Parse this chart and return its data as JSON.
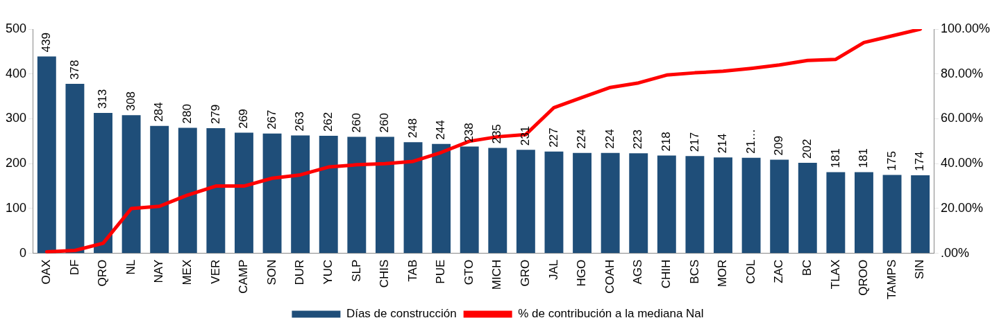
{
  "chart_data": {
    "type": "bar",
    "categories": [
      "OAX",
      "DF",
      "QRO",
      "NL",
      "NAY",
      "MEX",
      "VER",
      "CAMP",
      "SON",
      "DUR",
      "YUC",
      "SLP",
      "CHIS",
      "TAB",
      "PUE",
      "GTO",
      "MICH",
      "GRO",
      "JAL",
      "HGO",
      "COAH",
      "AGS",
      "CHIH",
      "BCS",
      "MOR",
      "COL",
      "ZAC",
      "BC",
      "TLAX",
      "QROO",
      "TAMPS",
      "SIN"
    ],
    "series": [
      {
        "name": "Días de construcción",
        "color": "#1f4e79",
        "values": [
          439,
          378,
          313,
          308,
          284,
          280,
          279,
          269,
          267,
          263,
          262,
          260,
          260,
          248,
          244,
          238,
          235,
          231,
          227,
          224,
          224,
          223,
          218,
          217,
          214,
          213,
          209,
          202,
          181,
          181,
          175,
          174
        ],
        "value_labels": [
          "439",
          "378",
          "313",
          "308",
          "284",
          "280",
          "279",
          "269",
          "267",
          "263",
          "262",
          "260",
          "260",
          "248",
          "244",
          "238",
          "235",
          "231",
          "227",
          "224",
          "224",
          "223",
          "218",
          "217",
          "214",
          "21…",
          "209",
          "202",
          "181",
          "181",
          "175",
          "174"
        ]
      },
      {
        "name": "% de contribución a la mediana Nal",
        "type": "line",
        "axis": "y2",
        "color": "#ff0000",
        "values": [
          0.7,
          1.3,
          4.5,
          20,
          21,
          26,
          30,
          30,
          33.5,
          35,
          38.5,
          39.5,
          40,
          41,
          45,
          50,
          52,
          53,
          65,
          69.5,
          74,
          76,
          79.5,
          80.5,
          81.2,
          82.5,
          84,
          86,
          86.5,
          94,
          97,
          100
        ]
      }
    ],
    "ylim": [
      0,
      500
    ],
    "yticks": [
      0,
      100,
      200,
      300,
      400,
      500
    ],
    "y2lim": [
      0,
      100
    ],
    "y2ticks": [
      {
        "value": 0,
        "label": ".00%"
      },
      {
        "value": 20,
        "label": "20.00%"
      },
      {
        "value": 40,
        "label": "40.00%"
      },
      {
        "value": 60,
        "label": "60.00%"
      },
      {
        "value": 80,
        "label": "80.00%"
      },
      {
        "value": 100,
        "label": "100.00%"
      }
    ],
    "grid": false,
    "legend": "bottom",
    "marker": "none",
    "line_style": "solid"
  }
}
